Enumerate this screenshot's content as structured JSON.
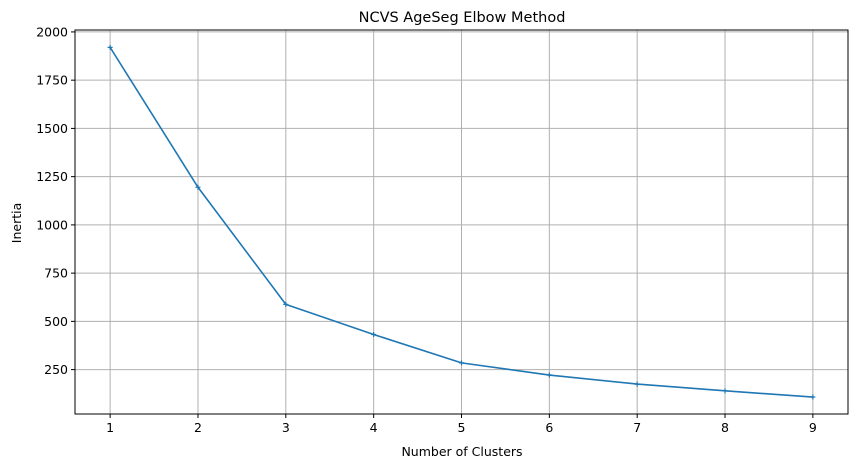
{
  "chart_data": {
    "type": "line",
    "title": "NCVS AgeSeg Elbow Method",
    "xlabel": "Number of Clusters",
    "ylabel": "Inertia",
    "x": [
      1,
      2,
      3,
      4,
      5,
      6,
      7,
      8,
      9
    ],
    "series": [
      {
        "values": [
          1920,
          1195,
          588,
          432,
          285,
          222,
          175,
          140,
          108
        ]
      }
    ],
    "xlim": [
      0.6,
      9.4
    ],
    "ylim": [
      20,
      2010
    ],
    "xticks": [
      1,
      2,
      3,
      4,
      5,
      6,
      7,
      8,
      9
    ],
    "yticks": [
      250,
      500,
      750,
      1000,
      1250,
      1500,
      1750,
      2000
    ],
    "grid": true,
    "line_color": "#1f77b4",
    "marker": "plus"
  }
}
